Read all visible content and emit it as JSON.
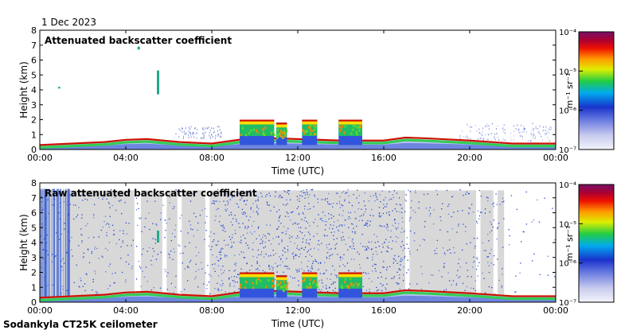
{
  "date": "1 Dec 2023",
  "footer": "Sodankyla CT25K ceilometer",
  "chart_data": [
    {
      "type": "heatmap",
      "title": "Attenuated backscatter coefficient",
      "xlabel": "Time (UTC)",
      "ylabel": "Height (km)",
      "x_ticks": [
        "00:00",
        "04:00",
        "08:00",
        "12:00",
        "16:00",
        "20:00",
        "00:00"
      ],
      "y_ticks": [
        "0",
        "1",
        "2",
        "3",
        "4",
        "5",
        "6",
        "7",
        "8"
      ],
      "xlim_hours": [
        0,
        24
      ],
      "ylim_km": [
        0,
        8
      ],
      "colorbar": {
        "unit_label": "m⁻¹ sr⁻¹",
        "scale": "log",
        "ticks": [
          "10⁻⁴",
          "10⁻⁵",
          "10⁻⁶",
          "10⁻⁷"
        ],
        "range": [
          1e-07,
          0.0001
        ]
      },
      "boundary_layer_top_km": [
        {
          "hour": 0,
          "km": 0.3
        },
        {
          "hour": 3,
          "km": 0.5
        },
        {
          "hour": 4,
          "km": 0.65
        },
        {
          "hour": 5,
          "km": 0.7
        },
        {
          "hour": 6.5,
          "km": 0.5
        },
        {
          "hour": 8,
          "km": 0.4
        },
        {
          "hour": 10,
          "km": 0.8
        },
        {
          "hour": 12,
          "km": 0.7
        },
        {
          "hour": 14,
          "km": 0.6
        },
        {
          "hour": 16,
          "km": 0.6
        },
        {
          "hour": 17,
          "km": 0.8
        },
        {
          "hour": 18,
          "km": 0.75
        },
        {
          "hour": 20,
          "km": 0.6
        },
        {
          "hour": 22,
          "km": 0.4
        },
        {
          "hour": 24,
          "km": 0.4
        }
      ],
      "cloud_layers": [
        {
          "start_hour": 9.3,
          "end_hour": 10.9,
          "top_km": 2.0
        },
        {
          "start_hour": 11.0,
          "end_hour": 11.5,
          "top_km": 1.8
        },
        {
          "start_hour": 12.2,
          "end_hour": 12.9,
          "top_km": 2.0
        },
        {
          "start_hour": 13.9,
          "end_hour": 15.0,
          "top_km": 2.0
        }
      ],
      "isolated_echoes": [
        {
          "hour": 5.5,
          "km_from": 3.7,
          "km_to": 5.3
        },
        {
          "hour": 4.6,
          "km_from": 6.7,
          "km_to": 6.9
        },
        {
          "hour": 0.9,
          "km_from": 4.1,
          "km_to": 4.2
        }
      ]
    },
    {
      "type": "heatmap",
      "title": "Raw attenuated backscatter coefficient",
      "xlabel": "Time (UTC)",
      "ylabel": "Height (km)",
      "x_ticks": [
        "00:00",
        "04:00",
        "08:00",
        "12:00",
        "16:00",
        "20:00",
        "00:00"
      ],
      "y_ticks": [
        "0",
        "1",
        "2",
        "3",
        "4",
        "5",
        "6",
        "7",
        "8"
      ],
      "xlim_hours": [
        0,
        24
      ],
      "ylim_km": [
        0,
        8
      ],
      "colorbar": {
        "unit_label": "m⁻¹ sr⁻¹",
        "scale": "log",
        "ticks": [
          "10⁻⁴",
          "10⁻⁵",
          "10⁻⁶",
          "10⁻⁷"
        ],
        "range": [
          1e-07,
          0.0001
        ]
      },
      "noise_gaps": [
        {
          "start_hour": 4.4,
          "end_hour": 4.7
        },
        {
          "start_hour": 5.7,
          "end_hour": 5.9
        },
        {
          "start_hour": 6.4,
          "end_hour": 6.6
        },
        {
          "start_hour": 7.7,
          "end_hour": 7.9
        },
        {
          "start_hour": 17.0,
          "end_hour": 17.2
        },
        {
          "start_hour": 20.3,
          "end_hour": 20.5
        },
        {
          "start_hour": 21.1,
          "end_hour": 21.3
        },
        {
          "start_hour": 21.6,
          "end_hour": 24.0
        }
      ]
    }
  ]
}
